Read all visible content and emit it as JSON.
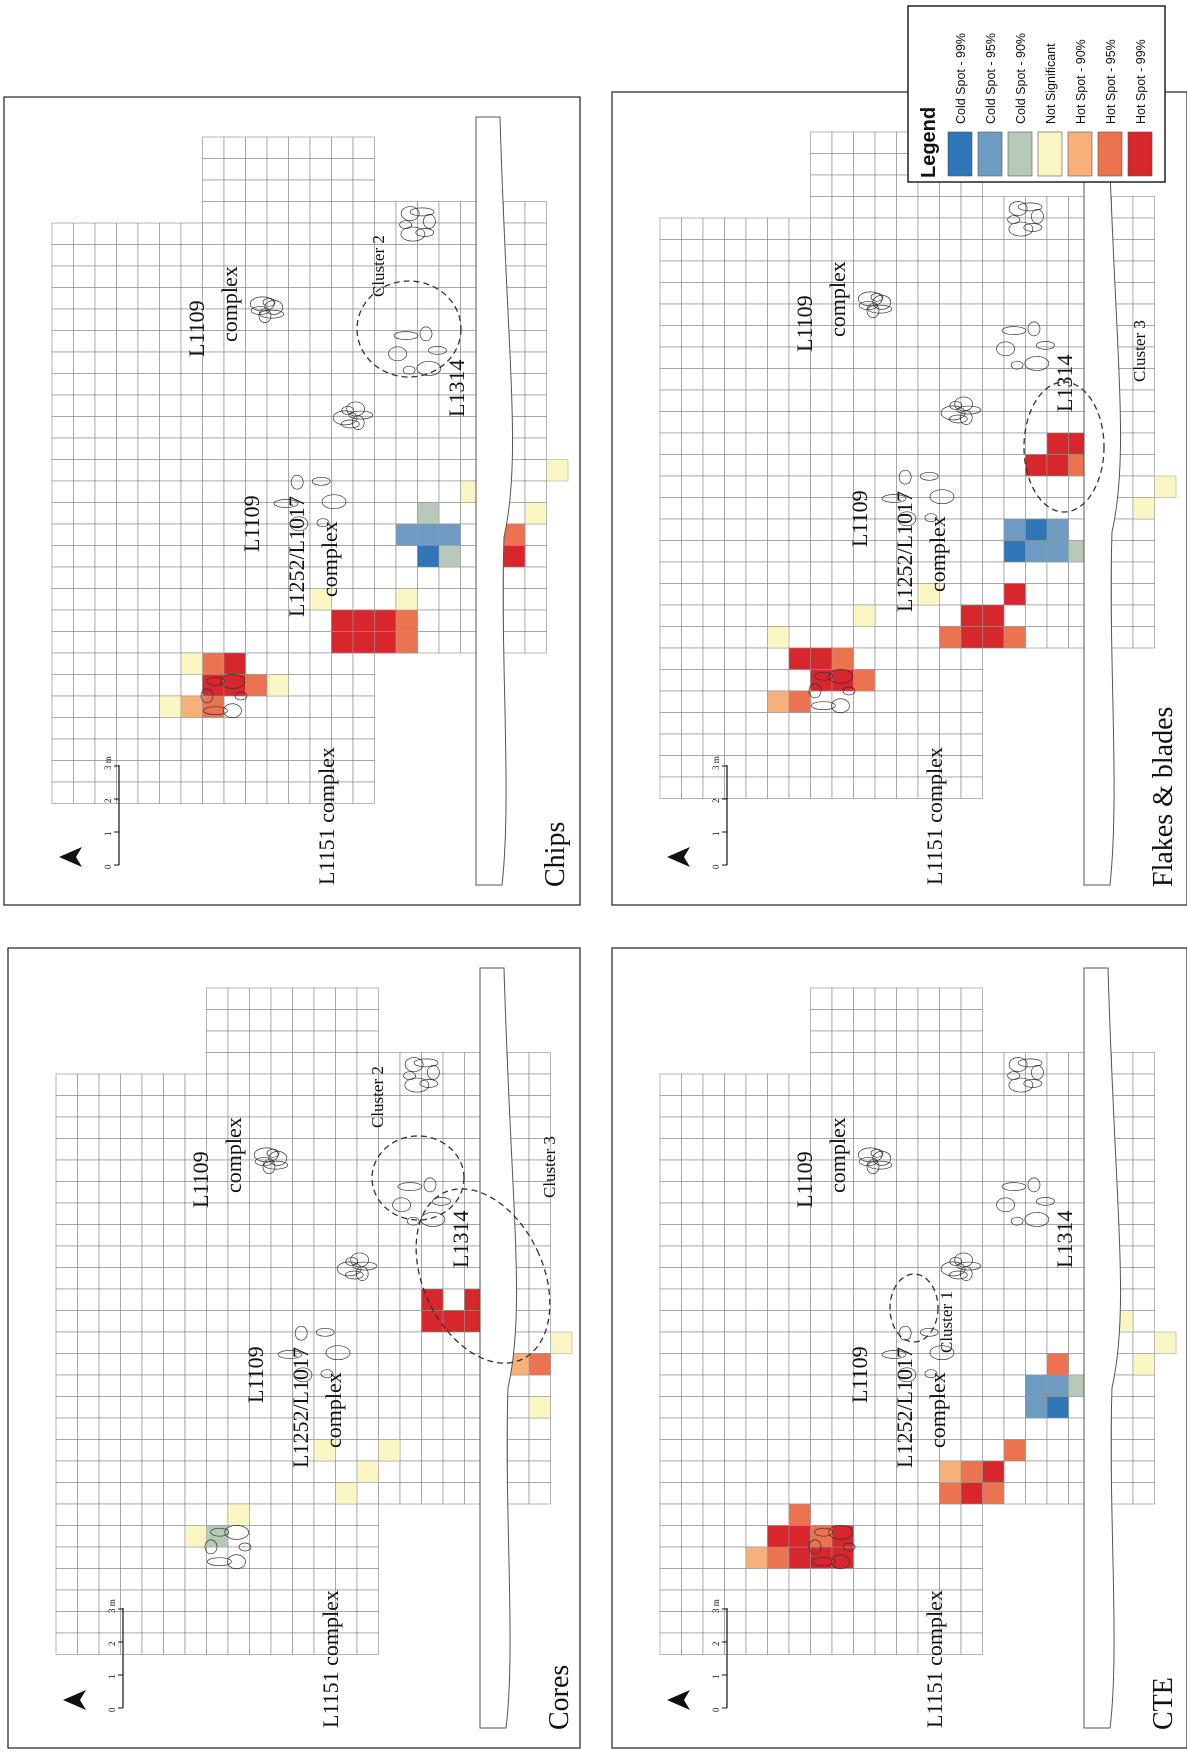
{
  "colors": {
    "cold99": "#2f76b8",
    "cold95": "#6d9bc2",
    "cold90": "#b7c9b9",
    "notsig": "#faf6c4",
    "hot90": "#f7b079",
    "hot95": "#ec7350",
    "hot99": "#d7262c"
  },
  "legend": {
    "title": "Legend",
    "items": [
      {
        "key": "cold99",
        "label": "Cold Spot - 99%"
      },
      {
        "key": "cold95",
        "label": "Cold Spot - 95%"
      },
      {
        "key": "cold90",
        "label": "Cold Spot - 90%"
      },
      {
        "key": "notsig",
        "label": "Not Significant"
      },
      {
        "key": "hot90",
        "label": "Hot Spot - 90%"
      },
      {
        "key": "hot95",
        "label": "Hot Spot - 95%"
      },
      {
        "key": "hot99",
        "label": "Hot Spot - 99%"
      }
    ]
  },
  "north_label": "N",
  "scale": {
    "ticks": [
      "0",
      "1",
      "2",
      "3 m"
    ]
  },
  "panels": [
    {
      "id": "chips",
      "title": "Chips",
      "labels": {
        "l1151": "L1151 complex",
        "l1252a": "L1252/L1017",
        "l1252b": "complex",
        "l1109a": "L1109",
        "l1109b": "complex",
        "l1109s": "L1109",
        "l1314": "L1314",
        "cluster": "Cluster 2"
      },
      "hot": [
        [
          "notsig",
          2,
          1
        ],
        [
          "hot90",
          3,
          1
        ],
        [
          "hot95",
          4,
          1
        ],
        [
          "hot99",
          4,
          2
        ],
        [
          "hot99",
          5,
          2
        ],
        [
          "hot95",
          6,
          2
        ],
        [
          "hot95",
          4,
          3
        ],
        [
          "hot99",
          5,
          3
        ],
        [
          "notsig",
          3,
          3
        ],
        [
          "notsig",
          7,
          2
        ],
        [
          "hot99",
          10,
          4
        ],
        [
          "hot99",
          11,
          4
        ],
        [
          "hot99",
          12,
          4
        ],
        [
          "hot95",
          13,
          4
        ],
        [
          "hot99",
          10,
          5
        ],
        [
          "hot99",
          11,
          5
        ],
        [
          "hot99",
          12,
          5
        ],
        [
          "hot95",
          13,
          5
        ],
        [
          "notsig",
          9,
          6
        ],
        [
          "notsig",
          13,
          6
        ],
        [
          "cold95",
          13,
          9
        ],
        [
          "cold95",
          14,
          9
        ],
        [
          "cold95",
          15,
          9
        ],
        [
          "cold99",
          14,
          8
        ],
        [
          "cold90",
          15,
          8
        ],
        [
          "cold90",
          14,
          10
        ],
        [
          "hot90",
          17,
          8
        ],
        [
          "hot95",
          17,
          9
        ],
        [
          "hot95",
          18,
          9
        ],
        [
          "hot99",
          18,
          8
        ],
        [
          "notsig",
          19,
          10
        ],
        [
          "notsig",
          16,
          11
        ],
        [
          "notsig",
          20,
          12
        ]
      ]
    },
    {
      "id": "flakes",
      "title": "Flakes & blades",
      "labels": {
        "l1151": "L1151 complex",
        "l1252a": "L1252/L1017",
        "l1252b": "complex",
        "l1109a": "L1109",
        "l1109b": "complex",
        "l1109s": "L1109",
        "l1314": "L1314",
        "cluster": "Cluster 3"
      },
      "hot": [
        [
          "hot90",
          2,
          1
        ],
        [
          "hot95",
          3,
          1
        ],
        [
          "hot99",
          4,
          2
        ],
        [
          "hot99",
          5,
          2
        ],
        [
          "hot95",
          6,
          2
        ],
        [
          "hot99",
          3,
          3
        ],
        [
          "hot99",
          4,
          3
        ],
        [
          "hot95",
          5,
          3
        ],
        [
          "notsig",
          2,
          4
        ],
        [
          "notsig",
          6,
          5
        ],
        [
          "hot95",
          10,
          4
        ],
        [
          "hot99",
          11,
          4
        ],
        [
          "hot99",
          12,
          4
        ],
        [
          "hot95",
          13,
          4
        ],
        [
          "hot99",
          11,
          5
        ],
        [
          "hot99",
          12,
          5
        ],
        [
          "hot99",
          13,
          6
        ],
        [
          "notsig",
          9,
          6
        ],
        [
          "cold99",
          13,
          8
        ],
        [
          "cold95",
          14,
          8
        ],
        [
          "cold95",
          15,
          8
        ],
        [
          "cold95",
          13,
          9
        ],
        [
          "cold99",
          14,
          9
        ],
        [
          "cold95",
          15,
          9
        ],
        [
          "cold90",
          16,
          8
        ],
        [
          "hot99",
          14,
          12
        ],
        [
          "hot99",
          15,
          12
        ],
        [
          "hot95",
          16,
          12
        ],
        [
          "hot99",
          15,
          13
        ],
        [
          "hot99",
          16,
          13
        ],
        [
          "hot90",
          17,
          13
        ],
        [
          "notsig",
          19,
          10
        ],
        [
          "notsig",
          20,
          11
        ]
      ]
    },
    {
      "id": "cores",
      "title": "Cores",
      "labels": {
        "l1151": "L1151 complex",
        "l1252a": "L1252/L1017",
        "l1252b": "complex",
        "l1109a": "L1109",
        "l1109b": "complex",
        "l1109s": "L1109",
        "l1314": "L1314",
        "cluster": "Cluster 2",
        "cluster2": "Cluster 3"
      },
      "hot": [
        [
          "cold90",
          4,
          2
        ],
        [
          "notsig",
          3,
          2
        ],
        [
          "notsig",
          5,
          3
        ],
        [
          "notsig",
          10,
          4
        ],
        [
          "notsig",
          11,
          5
        ],
        [
          "notsig",
          12,
          6
        ],
        [
          "notsig",
          9,
          6
        ],
        [
          "hot95",
          17,
          9
        ],
        [
          "hot90",
          18,
          10
        ],
        [
          "hot95",
          19,
          10
        ],
        [
          "hot99",
          14,
          12
        ],
        [
          "hot99",
          15,
          12
        ],
        [
          "hot99",
          16,
          12
        ],
        [
          "hot99",
          17,
          12
        ],
        [
          "hot99",
          14,
          13
        ],
        [
          "hot99",
          16,
          13
        ],
        [
          "hot99",
          17,
          13
        ],
        [
          "notsig",
          20,
          11
        ],
        [
          "notsig",
          19,
          8
        ]
      ]
    },
    {
      "id": "cte",
      "title": "CTE",
      "labels": {
        "l1151": "L1151 complex",
        "l1252a": "L1252/L1017",
        "l1252b": "complex",
        "l1109a": "L1109",
        "l1109b": "complex",
        "l1109s": "L1109",
        "l1314": "L1314",
        "cluster": "Cluster 1"
      },
      "hot": [
        [
          "hot90",
          1,
          1
        ],
        [
          "hot95",
          2,
          1
        ],
        [
          "hot99",
          3,
          1
        ],
        [
          "hot99",
          4,
          1
        ],
        [
          "hot99",
          5,
          1
        ],
        [
          "hot99",
          2,
          2
        ],
        [
          "hot99",
          3,
          2
        ],
        [
          "hot95",
          4,
          2
        ],
        [
          "hot99",
          5,
          2
        ],
        [
          "hot95",
          3,
          3
        ],
        [
          "hot95",
          10,
          4
        ],
        [
          "hot99",
          11,
          4
        ],
        [
          "hot95",
          12,
          4
        ],
        [
          "hot90",
          10,
          5
        ],
        [
          "hot95",
          11,
          5
        ],
        [
          "hot99",
          12,
          5
        ],
        [
          "hot95",
          13,
          6
        ],
        [
          "cold95",
          14,
          8
        ],
        [
          "cold99",
          15,
          8
        ],
        [
          "cold95",
          14,
          9
        ],
        [
          "cold95",
          15,
          9
        ],
        [
          "cold90",
          16,
          9
        ],
        [
          "cold90",
          17,
          12
        ],
        [
          "hot95",
          15,
          10
        ],
        [
          "notsig",
          19,
          10
        ],
        [
          "notsig",
          20,
          11
        ],
        [
          "notsig",
          18,
          12
        ]
      ]
    }
  ]
}
